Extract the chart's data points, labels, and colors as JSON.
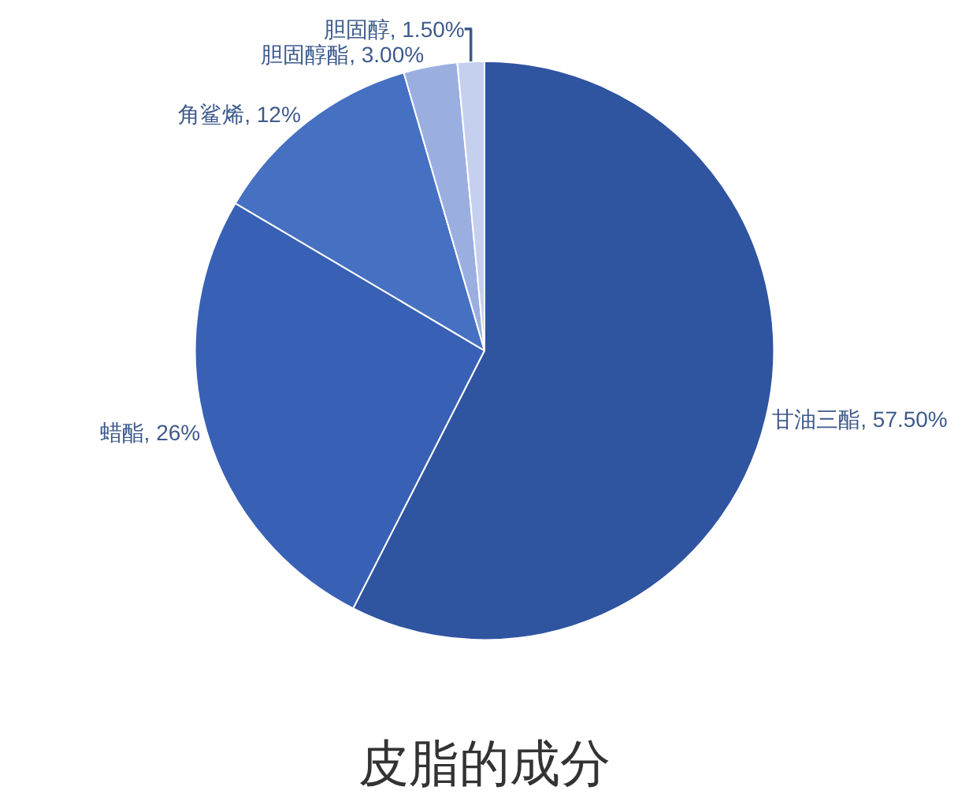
{
  "chart_data": {
    "type": "pie",
    "title": "皮脂的成分",
    "categories": [
      "甘油三酯",
      "蜡酯",
      "角鲨烯",
      "胆固醇酯",
      "胆固醇"
    ],
    "values": [
      57.5,
      26,
      12,
      3,
      1.5
    ],
    "value_labels": [
      "57.50%",
      "26%",
      "12%",
      "3.00%",
      "1.50%"
    ],
    "colors": [
      "#2f54a0",
      "#3861b5",
      "#4670c2",
      "#9aaee0",
      "#c5d0ee"
    ],
    "legend": false
  }
}
